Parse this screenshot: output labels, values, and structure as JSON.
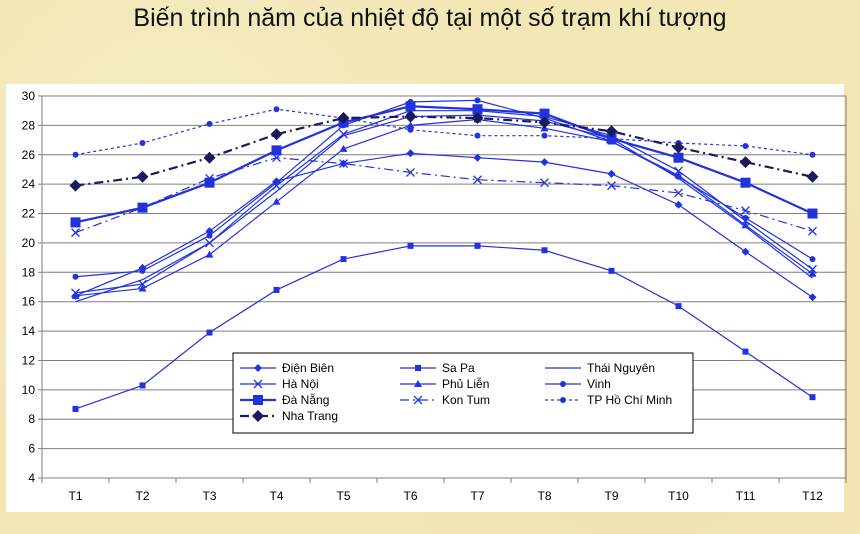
{
  "page": {
    "title": "Biến trình năm của nhiệt độ tại một số trạm khí tượng"
  },
  "chart_data": {
    "type": "line",
    "title": "Biến trình năm của nhiệt độ tại một số trạm khí tượng",
    "xlabel": "",
    "ylabel": "",
    "categories": [
      "T1",
      "T2",
      "T3",
      "T4",
      "T5",
      "T6",
      "T7",
      "T8",
      "T9",
      "T10",
      "T11",
      "T12"
    ],
    "ylim": [
      4,
      30
    ],
    "yticks": [
      4,
      6,
      8,
      10,
      12,
      14,
      16,
      18,
      20,
      22,
      24,
      26,
      28,
      30
    ],
    "grid": "horizontal",
    "legend_position": "center-bottom",
    "series": [
      {
        "name": "Điện Biên",
        "marker": "diamond",
        "dash": "solid",
        "bold": false,
        "color": "#2233dd",
        "values": [
          16.4,
          18.3,
          20.8,
          24.2,
          25.4,
          26.1,
          25.8,
          25.5,
          24.7,
          22.6,
          19.4,
          16.3
        ]
      },
      {
        "name": "Sa Pa",
        "marker": "square",
        "dash": "solid",
        "bold": false,
        "color": "#2233dd",
        "values": [
          8.7,
          10.3,
          13.9,
          16.8,
          18.9,
          19.8,
          19.8,
          19.5,
          18.1,
          15.7,
          12.6,
          9.5
        ]
      },
      {
        "name": "Thái Nguyên",
        "marker": "none",
        "dash": "solid",
        "bold": false,
        "color": "#2233dd",
        "values": [
          16.0,
          17.5,
          20.0,
          23.5,
          27.3,
          28.6,
          28.7,
          28.3,
          27.1,
          24.4,
          21.1,
          17.6
        ]
      },
      {
        "name": "Hà Nội",
        "marker": "x",
        "dash": "solid",
        "bold": false,
        "color": "#2233dd",
        "values": [
          16.6,
          17.2,
          20.0,
          23.9,
          27.4,
          29.0,
          29.0,
          28.6,
          27.3,
          24.9,
          21.5,
          18.2
        ]
      },
      {
        "name": "Phủ Liễn",
        "marker": "triangle",
        "dash": "solid",
        "bold": false,
        "color": "#2233dd",
        "values": [
          16.4,
          16.9,
          19.2,
          22.8,
          26.4,
          28.0,
          28.4,
          27.8,
          26.9,
          24.6,
          21.2,
          17.9
        ]
      },
      {
        "name": "Vinh",
        "marker": "circle",
        "dash": "solid",
        "bold": false,
        "color": "#2233dd",
        "values": [
          17.7,
          18.1,
          20.5,
          24.1,
          28.0,
          29.6,
          29.7,
          28.5,
          26.9,
          24.5,
          21.7,
          18.9
        ]
      },
      {
        "name": "Đà Nẵng",
        "marker": "square",
        "dash": "solid",
        "bold": true,
        "color": "#2233dd",
        "values": [
          21.4,
          22.4,
          24.1,
          26.3,
          28.2,
          29.3,
          29.1,
          28.8,
          27.1,
          25.8,
          24.1,
          22.0
        ]
      },
      {
        "name": "Kon Tum",
        "marker": "x",
        "dash": "dashdot",
        "bold": false,
        "color": "#2233dd",
        "values": [
          20.7,
          22.4,
          24.4,
          25.8,
          25.4,
          24.8,
          24.3,
          24.1,
          23.9,
          23.4,
          22.2,
          20.8
        ]
      },
      {
        "name": "TP Hồ Chí Minh",
        "marker": "circle",
        "dash": "dot",
        "bold": false,
        "color": "#2233dd",
        "values": [
          26.0,
          26.8,
          28.1,
          29.1,
          28.5,
          27.7,
          27.3,
          27.3,
          27.1,
          26.8,
          26.6,
          26.0
        ]
      },
      {
        "name": "Nha Trang",
        "marker": "diamond",
        "dash": "dashdot",
        "bold": true,
        "color": "#1a1a5e",
        "values": [
          23.9,
          24.5,
          25.8,
          27.4,
          28.5,
          28.6,
          28.5,
          28.2,
          27.6,
          26.5,
          25.5,
          24.5
        ]
      }
    ]
  }
}
